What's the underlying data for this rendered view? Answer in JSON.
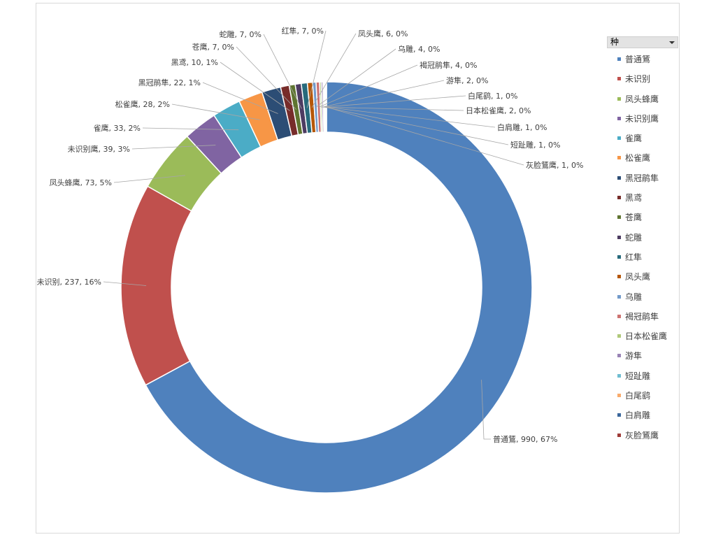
{
  "chart_data": {
    "type": "doughnut",
    "title": "",
    "legend_title": "种",
    "legend_position": "right",
    "series": [
      {
        "name": "普通鵟",
        "value": 990,
        "percent": "67%",
        "color": "#4f81bd"
      },
      {
        "name": "未识别",
        "value": 237,
        "percent": "16%",
        "color": "#c0504d"
      },
      {
        "name": "凤头蜂鹰",
        "value": 73,
        "percent": "5%",
        "color": "#9bbb59"
      },
      {
        "name": "未识别鹰",
        "value": 39,
        "percent": "3%",
        "color": "#8064a2"
      },
      {
        "name": "雀鹰",
        "value": 33,
        "percent": "2%",
        "color": "#4bacc6"
      },
      {
        "name": "松雀鹰",
        "value": 28,
        "percent": "2%",
        "color": "#f79646"
      },
      {
        "name": "黑冠鹃隼",
        "value": 22,
        "percent": "1%",
        "color": "#2c4d75"
      },
      {
        "name": "黑鸢",
        "value": 10,
        "percent": "1%",
        "color": "#772c2a"
      },
      {
        "name": "苍鹰",
        "value": 7,
        "percent": "0%",
        "color": "#5f7530"
      },
      {
        "name": "蛇雕",
        "value": 7,
        "percent": "0%",
        "color": "#4d3b62"
      },
      {
        "name": "红隼",
        "value": 7,
        "percent": "0%",
        "color": "#276a7c"
      },
      {
        "name": "凤头鹰",
        "value": 6,
        "percent": "0%",
        "color": "#b65708"
      },
      {
        "name": "乌雕",
        "value": 4,
        "percent": "0%",
        "color": "#729aca"
      },
      {
        "name": "褐冠鹃隼",
        "value": 4,
        "percent": "0%",
        "color": "#cd7371"
      },
      {
        "name": "日本松雀鹰",
        "value": 2,
        "percent": "0%",
        "color": "#afc97a"
      },
      {
        "name": "游隼",
        "value": 2,
        "percent": "0%",
        "color": "#9983b5"
      },
      {
        "name": "短趾雕",
        "value": 1,
        "percent": "0%",
        "color": "#6fbdd1"
      },
      {
        "name": "白尾鹞",
        "value": 1,
        "percent": "0%",
        "color": "#f9ab6b"
      },
      {
        "name": "白肩雕",
        "value": 1,
        "percent": "0%",
        "color": "#3a679c"
      },
      {
        "name": "灰脸鵟鹰",
        "value": 1,
        "percent": "0%",
        "color": "#9f3b38"
      }
    ],
    "data_labels": [
      {
        "series": 0,
        "text": "普通鵟, 990, 67%"
      },
      {
        "series": 1,
        "text": "未识别, 237, 16%"
      },
      {
        "series": 2,
        "text": "凤头蜂鹰, 73, 5%"
      },
      {
        "series": 3,
        "text": "未识别鹰, 39, 3%"
      },
      {
        "series": 4,
        "text": "雀鹰, 33, 2%"
      },
      {
        "series": 5,
        "text": "松雀鹰, 28, 2%"
      },
      {
        "series": 6,
        "text": "黑冠鹃隼, 22, 1%"
      },
      {
        "series": 7,
        "text": "黑鸢, 10, 1%"
      },
      {
        "series": 8,
        "text": "苍鹰, 7, 0%"
      },
      {
        "series": 9,
        "text": "蛇雕, 7, 0%"
      },
      {
        "series": 10,
        "text": "红隼, 7, 0%"
      },
      {
        "series": 11,
        "text": "凤头鹰, 6, 0%"
      },
      {
        "series": 12,
        "text": "乌雕, 4, 0%"
      },
      {
        "series": 13,
        "text": "褐冠鹃隼, 4, 0%"
      },
      {
        "series": 15,
        "text": "游隼, 2, 0%"
      },
      {
        "series": 17,
        "text": "白尾鹞, 1, 0%"
      },
      {
        "series": 14,
        "text": "日本松雀鹰, 2, 0%"
      },
      {
        "series": 18,
        "text": "白肩雕, 1, 0%"
      },
      {
        "series": 16,
        "text": "短趾雕, 1, 0%"
      },
      {
        "series": 19,
        "text": "灰脸鵟鹰, 1, 0%"
      }
    ]
  }
}
